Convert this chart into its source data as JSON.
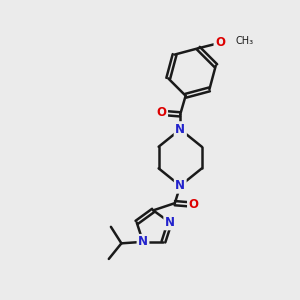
{
  "background_color": "#ebebeb",
  "bond_color": "#1a1a1a",
  "nitrogen_color": "#2222cc",
  "oxygen_color": "#dd0000",
  "line_width": 1.8,
  "font_size_atom": 8.5,
  "figsize": [
    3.0,
    3.0
  ],
  "dpi": 100,
  "xlim": [
    0,
    10
  ],
  "ylim": [
    0,
    10
  ]
}
